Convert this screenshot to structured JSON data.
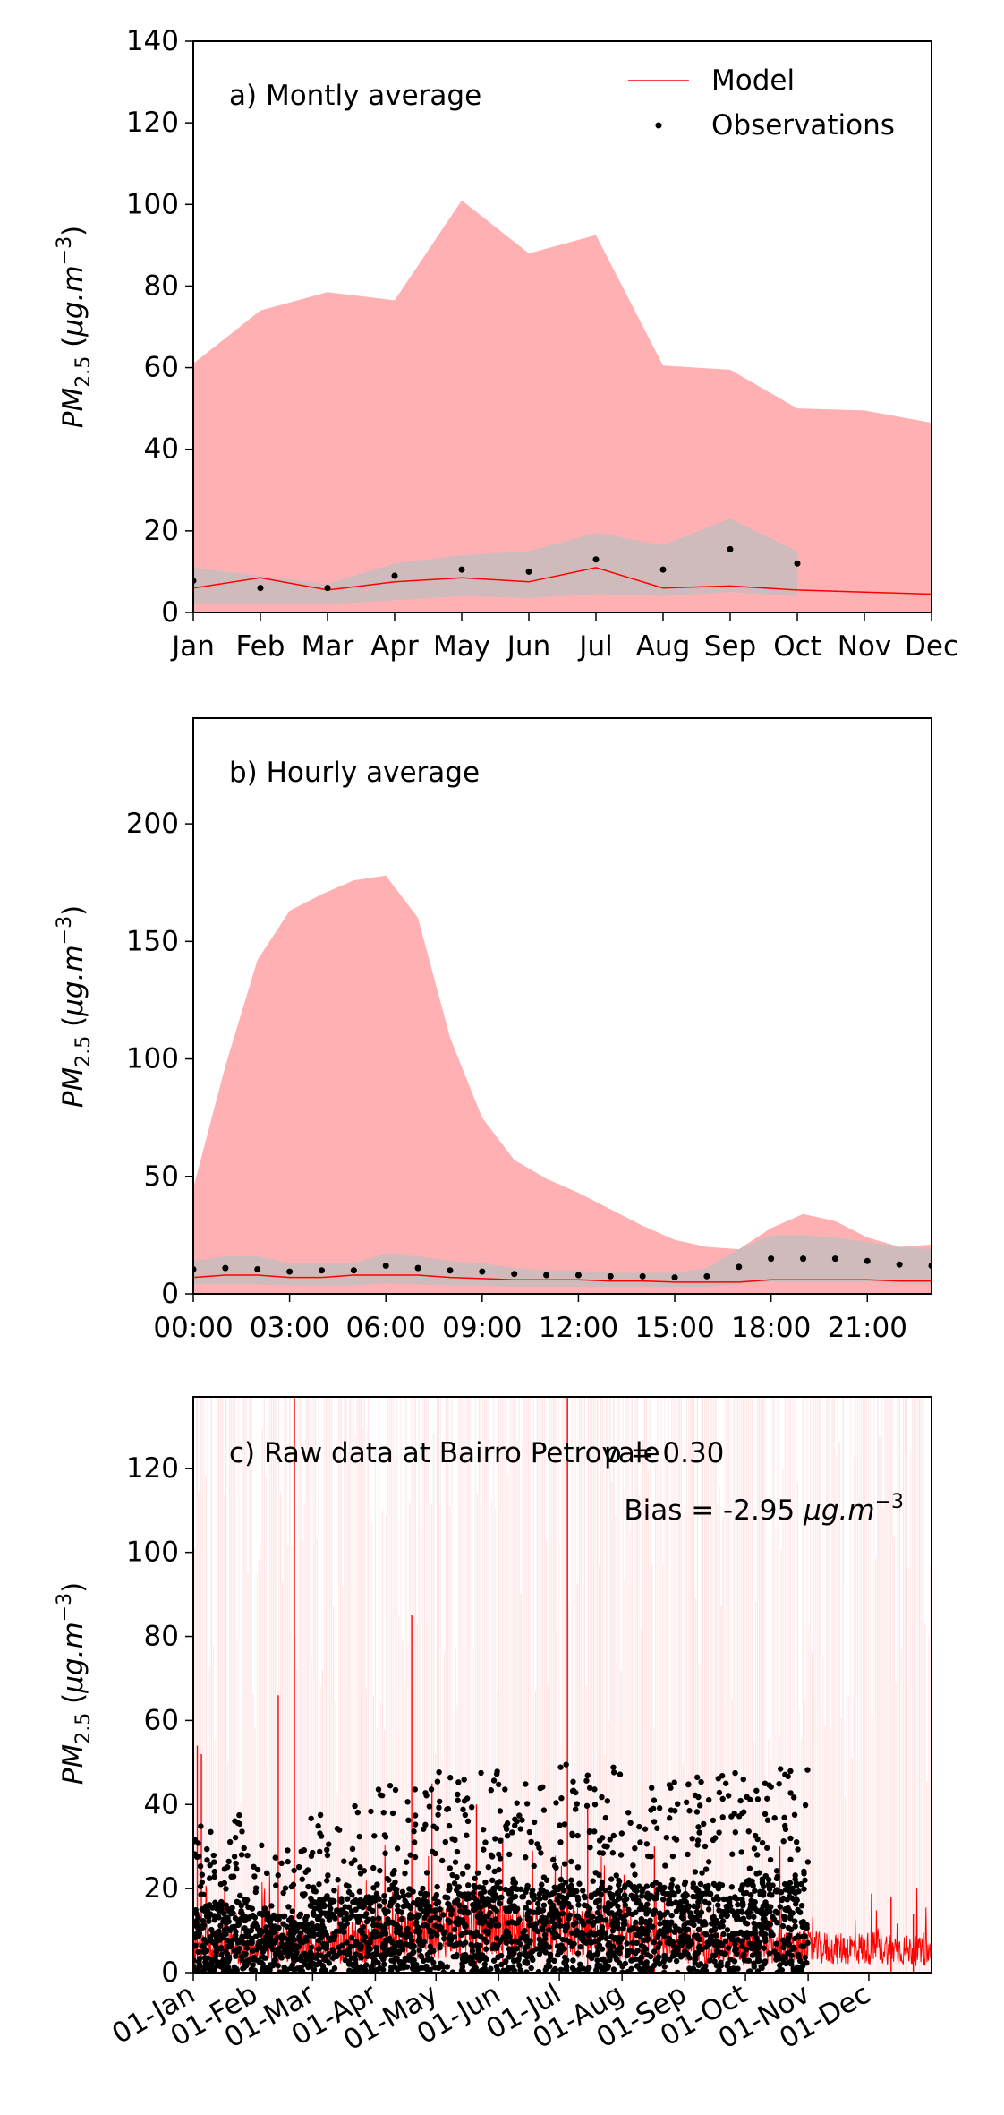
{
  "chart_data": [
    {
      "type": "area",
      "title": "a) Montly average",
      "ylabel": "PM2.5 (μg.m−3)",
      "ylim": [
        0,
        140
      ],
      "yticks": [
        0,
        20,
        40,
        60,
        80,
        100,
        120,
        140
      ],
      "categories": [
        "Jan",
        "Feb",
        "Mar",
        "Apr",
        "May",
        "Jun",
        "Jul",
        "Aug",
        "Sep",
        "Oct",
        "Nov",
        "Dec"
      ],
      "legend": {
        "position": "top-right",
        "model_label": "Model",
        "obs_label": "Observations"
      },
      "colors": {
        "model": "#ff0000",
        "model_band": "#ffb0b3",
        "obs_band": "#bfbfbf",
        "obs": "#000000"
      },
      "model": [
        6,
        8.5,
        5.5,
        7.5,
        8.5,
        7.5,
        11,
        6,
        6.5,
        5.5,
        5,
        4.5
      ],
      "model_upper": [
        61,
        74,
        78.5,
        76.5,
        101,
        88,
        92.5,
        60.5,
        59.5,
        50,
        49.5,
        46.5
      ],
      "model_lower": [
        0,
        0,
        0,
        0,
        0,
        0,
        0,
        0,
        0,
        0,
        0,
        0
      ],
      "observations": [
        7.8,
        6,
        6,
        9,
        10.5,
        10,
        13,
        10.5,
        15.5,
        12
      ],
      "obs_upper": [
        11,
        9,
        7,
        12,
        14,
        15,
        19.5,
        16.5,
        23,
        15
      ],
      "obs_lower": [
        2,
        2,
        2,
        3,
        4,
        3.5,
        4.5,
        4,
        5,
        4
      ]
    },
    {
      "type": "area",
      "title": "b) Hourly average",
      "ylabel": "PM2.5 (μg.m−3)",
      "ylim": [
        0,
        245
      ],
      "yticks": [
        0,
        50,
        100,
        150,
        200
      ],
      "x": [
        0,
        1,
        2,
        3,
        4,
        5,
        6,
        7,
        8,
        9,
        10,
        11,
        12,
        13,
        14,
        15,
        16,
        17,
        18,
        19,
        20,
        21,
        22,
        23
      ],
      "xlim": [
        0,
        23
      ],
      "xticks": [
        0,
        3,
        6,
        9,
        12,
        15,
        18,
        21
      ],
      "xticklabels": [
        "00:00",
        "03:00",
        "06:00",
        "09:00",
        "12:00",
        "15:00",
        "18:00",
        "21:00"
      ],
      "colors": {
        "model": "#ff0000",
        "model_band": "#ffb0b3",
        "obs_band": "#bfbfbf",
        "obs": "#000000"
      },
      "model": [
        7,
        8,
        8,
        7,
        7,
        8,
        8,
        8,
        7,
        6.5,
        6,
        6,
        6,
        5.5,
        5.5,
        5,
        5,
        5,
        6,
        6,
        6,
        6,
        5.5,
        5.5
      ],
      "model_upper": [
        45,
        97,
        142,
        163,
        170,
        176,
        178,
        160,
        109,
        75,
        57,
        49,
        43,
        36,
        29,
        23,
        20,
        19,
        28,
        34,
        31,
        24,
        20,
        21
      ],
      "model_lower": [
        0,
        0,
        0,
        0,
        0,
        0,
        0,
        0,
        0,
        0,
        0,
        0,
        0,
        0,
        0,
        0,
        0,
        0,
        0,
        0,
        0,
        0,
        0,
        0
      ],
      "observations": [
        10.5,
        11,
        10.5,
        9.5,
        10,
        10,
        12,
        11,
        10,
        9.5,
        8.5,
        8,
        8,
        7.5,
        7.5,
        7,
        7.5,
        11.5,
        15,
        15,
        15,
        14,
        12.5,
        12
      ],
      "obs_upper": [
        14,
        16,
        16,
        13,
        13,
        13,
        17,
        16,
        14,
        13,
        11,
        10,
        10,
        9,
        9,
        9,
        11,
        19,
        25,
        25,
        24,
        22,
        20,
        19
      ],
      "obs_lower": [
        4,
        4,
        4,
        3.5,
        3.5,
        3.5,
        4.5,
        4,
        3.5,
        3.5,
        3,
        3,
        3,
        3,
        3,
        3,
        3,
        4,
        5,
        5,
        5,
        5,
        4.5,
        4
      ]
    },
    {
      "type": "line",
      "title": "c) Raw data at Bairro Petrovale",
      "annotation_overlap": "p = 0.30",
      "bias_text": "Bias = -2.95 μg.m−3",
      "ylabel": "PM2.5 (μg.m−3)",
      "ylim": [
        0,
        137
      ],
      "yticks": [
        0,
        20,
        40,
        60,
        80,
        100,
        120
      ],
      "xlim_day": [
        0,
        365
      ],
      "xticks_day": [
        0,
        31,
        59,
        90,
        120,
        151,
        181,
        212,
        243,
        273,
        304,
        334
      ],
      "xticklabels": [
        "01-Jan",
        "01-Feb",
        "01-Mar",
        "01-Apr",
        "01-May",
        "01-Jun",
        "01-Jul",
        "01-Aug",
        "01-Sep",
        "01-Oct",
        "01-Nov",
        "01-Dec"
      ],
      "colors": {
        "model": "#ff0000",
        "spread": "#ffd9da",
        "obs": "#000000"
      },
      "model_spikes": [
        {
          "day": 2,
          "value": 54
        },
        {
          "day": 4,
          "value": 52
        },
        {
          "day": 42,
          "value": 66
        },
        {
          "day": 50,
          "value": 137
        },
        {
          "day": 90,
          "value": 20
        },
        {
          "day": 108,
          "value": 85
        },
        {
          "day": 118,
          "value": 45
        },
        {
          "day": 140,
          "value": 40
        },
        {
          "day": 153,
          "value": 32
        },
        {
          "day": 185,
          "value": 137
        },
        {
          "day": 195,
          "value": 40
        },
        {
          "day": 228,
          "value": 30
        },
        {
          "day": 290,
          "value": 30
        },
        {
          "day": 345,
          "value": 18
        },
        {
          "day": 356,
          "value": 14
        }
      ],
      "model_baseline": [
        [
          0,
          5
        ],
        [
          15,
          6
        ],
        [
          30,
          4
        ],
        [
          45,
          6
        ],
        [
          60,
          5
        ],
        [
          75,
          6
        ],
        [
          90,
          7
        ],
        [
          105,
          8
        ],
        [
          120,
          9
        ],
        [
          135,
          10
        ],
        [
          150,
          9
        ],
        [
          165,
          8
        ],
        [
          180,
          9
        ],
        [
          195,
          8
        ],
        [
          210,
          7
        ],
        [
          225,
          6
        ],
        [
          240,
          6
        ],
        [
          255,
          5
        ],
        [
          270,
          5
        ],
        [
          285,
          5
        ],
        [
          300,
          5
        ],
        [
          315,
          5
        ],
        [
          330,
          5
        ],
        [
          345,
          5
        ],
        [
          365,
          4
        ]
      ],
      "obs_clusters": [
        {
          "start": 0,
          "end": 25,
          "peak": 38
        },
        {
          "start": 25,
          "end": 58,
          "peak": 31
        },
        {
          "start": 58,
          "end": 90,
          "peak": 40
        },
        {
          "start": 90,
          "end": 120,
          "peak": 45
        },
        {
          "start": 120,
          "end": 151,
          "peak": 48
        },
        {
          "start": 151,
          "end": 181,
          "peak": 45
        },
        {
          "start": 181,
          "end": 212,
          "peak": 50
        },
        {
          "start": 212,
          "end": 243,
          "peak": 47
        },
        {
          "start": 243,
          "end": 273,
          "peak": 48
        },
        {
          "start": 273,
          "end": 304,
          "peak": 49
        }
      ]
    }
  ]
}
